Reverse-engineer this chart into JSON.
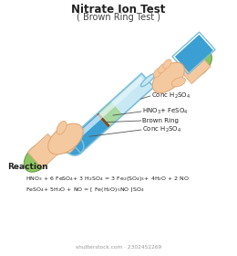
{
  "title": "Nitrate Ion Test",
  "subtitle": "( Brown Ring Test )",
  "title_fontsize": 8.5,
  "subtitle_fontsize": 7,
  "background_color": "#ffffff",
  "reaction_label": "Reaction",
  "reaction1": "HNO$_3$ + 6 FeSO$_4$+ 3 H$_2$SO$_4$ = 3 Fe$_2$(SO$_4$)$_3$+ 4H$_2$O + 2 NO",
  "reaction2": "FeSO$_4$+ 5H$_2$O + NO = [ Fe(H$_2$O)$_5$NO ]SO$_4$",
  "label_conc_h2so4_top": "Conc H$_2$SO$_4$",
  "label_hno3_feso4": "HNO$_3$+ FeSO$_4$",
  "label_brown_ring": "Brown Ring",
  "label_conc_h2so4_bot": "Conc H$_2$SO$_4$",
  "skin_color": "#F5C9A0",
  "skin_edge": "#E0A878",
  "sleeve_color": "#8DC462",
  "sleeve_edge": "#6A9F45",
  "tube_glass_color": "#C8E8F4",
  "tube_blue_color": "#3B9FD4",
  "tube_green_color": "#A8D8A0",
  "tube_brown_color": "#7B4A1E",
  "tube_outline_color": "#7BBFD8",
  "tube_highlight": "#E8F5FB",
  "watermark": "shutterstock.com · 2302452269"
}
